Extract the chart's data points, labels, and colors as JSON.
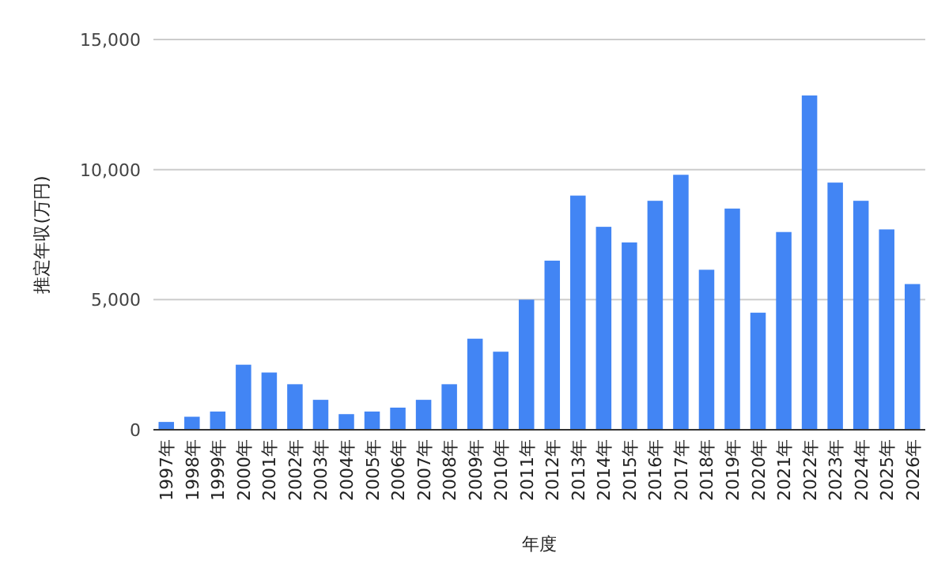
{
  "chart_data": {
    "type": "bar",
    "xlabel": "年度",
    "ylabel": "推定年収(万円)",
    "categories": [
      "1997年",
      "1998年",
      "1999年",
      "2000年",
      "2001年",
      "2002年",
      "2003年",
      "2004年",
      "2005年",
      "2006年",
      "2007年",
      "2008年",
      "2009年",
      "2010年",
      "2011年",
      "2012年",
      "2013年",
      "2014年",
      "2015年",
      "2016年",
      "2017年",
      "2018年",
      "2019年",
      "2020年",
      "2021年",
      "2022年",
      "2023年",
      "2024年",
      "2025年",
      "2026年"
    ],
    "values": [
      300,
      500,
      700,
      2500,
      2200,
      1750,
      1150,
      600,
      700,
      850,
      1150,
      1750,
      3500,
      3000,
      5000,
      6500,
      9000,
      7800,
      7200,
      8800,
      9800,
      6150,
      8500,
      4500,
      7600,
      12850,
      9500,
      8800,
      7700,
      5600
    ],
    "color": "#4285f4",
    "ylim": [
      0,
      15000
    ],
    "yticks": [
      0,
      {
        "value": 5000,
        "label": "5,000"
      },
      {
        "value": 10000,
        "label": "10,000"
      },
      {
        "value": 15000,
        "label": "15,000"
      }
    ],
    "grid": "y"
  }
}
